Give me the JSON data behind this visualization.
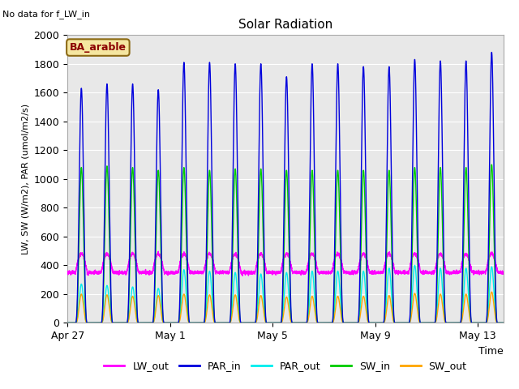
{
  "title": "Solar Radiation",
  "note": "No data for f_LW_in",
  "ylabel": "LW, SW (W/m2), PAR (umol/m2/s)",
  "xlabel": "Time",
  "legend_label": "BA_arable",
  "ylim": [
    0,
    2000
  ],
  "yticks": [
    0,
    200,
    400,
    600,
    800,
    1000,
    1200,
    1400,
    1600,
    1800,
    2000
  ],
  "bg_color": "#e8e8e8",
  "series": {
    "LW_out": {
      "color": "#ff00ff",
      "lw": 1.0
    },
    "PAR_in": {
      "color": "#0000dd",
      "lw": 1.0
    },
    "PAR_out": {
      "color": "#00eeee",
      "lw": 1.0
    },
    "SW_in": {
      "color": "#00cc00",
      "lw": 1.0
    },
    "SW_out": {
      "color": "#ffa500",
      "lw": 1.0
    }
  },
  "xtick_labels": [
    "Apr 27",
    "May 1",
    "May 5",
    "May 9",
    "May 13"
  ],
  "xtick_days": [
    0,
    4,
    8,
    12,
    16
  ],
  "par_in_peaks": [
    1630,
    1660,
    1660,
    1620,
    1810,
    1810,
    1800,
    1800,
    1710,
    1800,
    1800,
    1780,
    1780,
    1830,
    1820,
    1820,
    1880
  ],
  "sw_in_peaks": [
    1080,
    1090,
    1080,
    1060,
    1080,
    1060,
    1070,
    1070,
    1060,
    1060,
    1060,
    1060,
    1060,
    1080,
    1080,
    1080,
    1100
  ],
  "par_out_peaks": [
    270,
    260,
    250,
    240,
    370,
    360,
    350,
    340,
    350,
    360,
    360,
    360,
    380,
    400,
    380,
    380,
    390
  ],
  "sw_out_peaks": [
    200,
    195,
    185,
    190,
    200,
    195,
    195,
    190,
    180,
    185,
    185,
    185,
    190,
    205,
    200,
    200,
    215
  ],
  "day_start": 7.5,
  "day_end": 18.5,
  "peak_power": 3.0,
  "lw_base": 350,
  "lw_day_boost": 130,
  "lw_min": 310,
  "total_days": 17
}
